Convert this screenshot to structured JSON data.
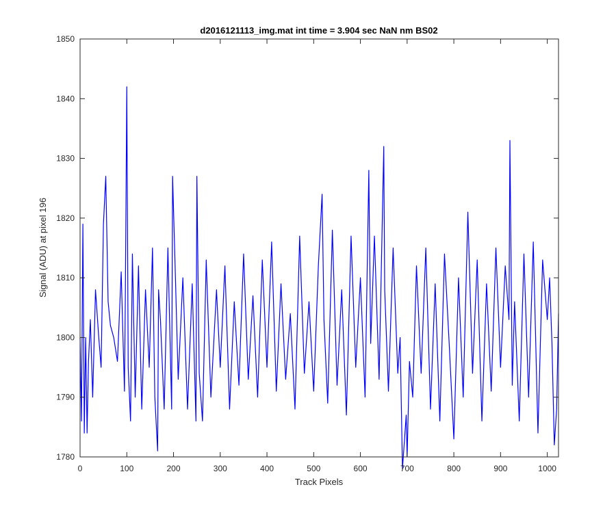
{
  "chart_data": {
    "type": "line",
    "title": "d2016121113_img.mat int time = 3.904 sec  NaN nm BS02",
    "xlabel": "Track Pixels",
    "ylabel": "Signal (ADU) at pixel 196",
    "xlim": [
      0,
      1024
    ],
    "ylim": [
      1780,
      1850
    ],
    "xticks": [
      0,
      100,
      200,
      300,
      400,
      500,
      600,
      700,
      800,
      900,
      1000
    ],
    "yticks": [
      1780,
      1790,
      1800,
      1810,
      1820,
      1830,
      1840,
      1850
    ],
    "grid": false,
    "series": [
      {
        "color": "#0000ff",
        "x": [
          0,
          3,
          6,
          9,
          12,
          15,
          18,
          22,
          27,
          33,
          40,
          45,
          50,
          55,
          60,
          65,
          72,
          80,
          88,
          95,
          97,
          100,
          103,
          108,
          112,
          118,
          125,
          132,
          140,
          148,
          155,
          160,
          166,
          168,
          172,
          180,
          188,
          196,
          198,
          202,
          210,
          220,
          230,
          240,
          248,
          250,
          255,
          262,
          270,
          280,
          292,
          300,
          310,
          320,
          330,
          340,
          350,
          360,
          370,
          380,
          390,
          400,
          410,
          420,
          430,
          440,
          450,
          460,
          470,
          480,
          490,
          500,
          510,
          518,
          522,
          530,
          540,
          550,
          560,
          570,
          580,
          590,
          600,
          610,
          618,
          622,
          630,
          640,
          650,
          652,
          660,
          670,
          680,
          685,
          690,
          698,
          700,
          705,
          712,
          720,
          730,
          740,
          750,
          760,
          770,
          780,
          790,
          800,
          810,
          820,
          830,
          840,
          850,
          860,
          870,
          880,
          890,
          900,
          910,
          918,
          920,
          925,
          930,
          940,
          950,
          960,
          970,
          980,
          990,
          1000,
          1005,
          1010,
          1015,
          1020,
          1024
        ],
        "y": [
          1800,
          1786,
          1819,
          1784,
          1800,
          1784,
          1796,
          1803,
          1790,
          1808,
          1800,
          1795,
          1819,
          1827,
          1806,
          1802,
          1800,
          1796,
          1811,
          1791,
          1808,
          1842,
          1795,
          1786,
          1814,
          1790,
          1812,
          1788,
          1808,
          1795,
          1815,
          1790,
          1781,
          1808,
          1803,
          1788,
          1815,
          1788,
          1827,
          1816,
          1793,
          1810,
          1788,
          1809,
          1786,
          1827,
          1794,
          1786,
          1813,
          1790,
          1808,
          1795,
          1812,
          1788,
          1806,
          1792,
          1814,
          1793,
          1807,
          1790,
          1813,
          1795,
          1816,
          1791,
          1809,
          1793,
          1804,
          1788,
          1817,
          1794,
          1806,
          1791,
          1812,
          1824,
          1803,
          1789,
          1818,
          1792,
          1808,
          1787,
          1817,
          1795,
          1810,
          1790,
          1828,
          1799,
          1817,
          1793,
          1832,
          1808,
          1791,
          1815,
          1794,
          1800,
          1778,
          1787,
          1780,
          1796,
          1790,
          1812,
          1794,
          1815,
          1788,
          1809,
          1786,
          1814,
          1799,
          1783,
          1810,
          1790,
          1821,
          1794,
          1813,
          1786,
          1809,
          1791,
          1815,
          1795,
          1812,
          1803,
          1833,
          1792,
          1806,
          1786,
          1814,
          1790,
          1816,
          1784,
          1813,
          1803,
          1810,
          1799,
          1782,
          1788,
          1804
        ]
      }
    ]
  }
}
